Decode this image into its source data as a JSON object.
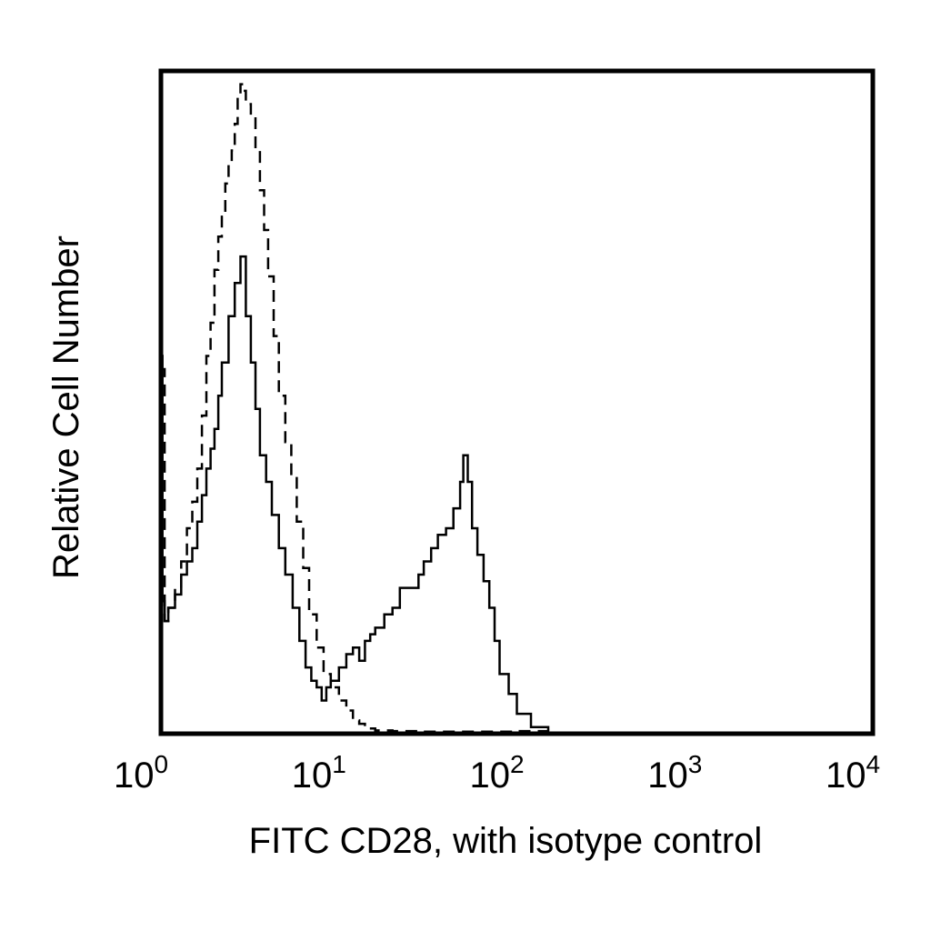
{
  "chart_data": {
    "type": "line",
    "title": "",
    "xlabel": "FITC CD28, with isotype control",
    "ylabel": "Relative Cell Number",
    "xscale": "log",
    "xlim": [
      1,
      10000
    ],
    "ylim": [
      0,
      100
    ],
    "grid": false,
    "legend": "none",
    "x_ticks": [
      {
        "base": "10",
        "exp": "0",
        "value": 1
      },
      {
        "base": "10",
        "exp": "1",
        "value": 10
      },
      {
        "base": "10",
        "exp": "2",
        "value": 100
      },
      {
        "base": "10",
        "exp": "3",
        "value": 1000
      },
      {
        "base": "10",
        "exp": "4",
        "value": 10000
      }
    ],
    "series": [
      {
        "style": "dashed",
        "color": "#000000",
        "x": [
          1.0,
          1.05,
          1.1,
          1.2,
          1.3,
          1.4,
          1.5,
          1.6,
          1.7,
          1.8,
          1.9,
          2.0,
          2.1,
          2.2,
          2.3,
          2.4,
          2.5,
          2.6,
          2.7,
          2.8,
          2.9,
          3.0,
          3.2,
          3.4,
          3.6,
          3.8,
          4.0,
          4.3,
          4.6,
          5.0,
          5.4,
          5.8,
          6.3,
          6.8,
          7.5,
          8.2,
          9.0,
          10.0,
          11.0,
          12.0,
          13.0,
          14.0,
          16.0,
          20.0,
          30.0,
          50.0,
          80.0,
          100.0,
          150.0
        ],
        "y": [
          55,
          17,
          19,
          22,
          26,
          31,
          35,
          40,
          48,
          57,
          62,
          70,
          75,
          78,
          83,
          86,
          88,
          92,
          96,
          98,
          97,
          95,
          93,
          88,
          82,
          76,
          69,
          60,
          51,
          44,
          39,
          32,
          25,
          18,
          13,
          9,
          7,
          5,
          3.5,
          2,
          1.5,
          0.8,
          0.5,
          0.4,
          0.3,
          0.3,
          0.3,
          0.4,
          0.3
        ]
      },
      {
        "style": "solid",
        "color": "#000000",
        "x": [
          1.0,
          1.02,
          1.05,
          1.1,
          1.2,
          1.3,
          1.4,
          1.5,
          1.6,
          1.7,
          1.8,
          1.9,
          2.0,
          2.1,
          2.2,
          2.4,
          2.6,
          2.8,
          3.0,
          3.2,
          3.4,
          3.6,
          3.9,
          4.2,
          4.6,
          5.0,
          5.5,
          6.0,
          6.5,
          7.0,
          7.5,
          8.0,
          8.5,
          9.0,
          10.0,
          11.0,
          12.0,
          13.0,
          14.0,
          15.0,
          16.0,
          18.0,
          20.0,
          22.0,
          25.0,
          28.0,
          30.0,
          33.0,
          36.0,
          40.0,
          44.0,
          48.0,
          50.0,
          53.0,
          56.0,
          60.0,
          65.0,
          70.0,
          75.0,
          80.0,
          90.0,
          100.0,
          120.0,
          150.0
        ],
        "y": [
          57,
          20,
          17,
          19,
          21,
          24,
          26,
          28,
          32,
          36,
          40,
          43,
          46,
          51,
          56,
          63,
          68,
          72,
          63,
          56,
          49,
          42,
          38,
          33,
          28,
          24,
          19,
          14,
          10,
          8,
          7,
          5,
          7,
          8,
          10,
          12,
          13,
          11,
          14,
          15,
          16,
          18,
          19,
          22,
          22,
          24,
          26,
          28,
          30,
          31,
          34,
          38,
          42,
          38,
          31,
          27,
          23,
          19,
          14,
          9,
          6,
          3,
          1,
          0.5
        ]
      }
    ]
  }
}
